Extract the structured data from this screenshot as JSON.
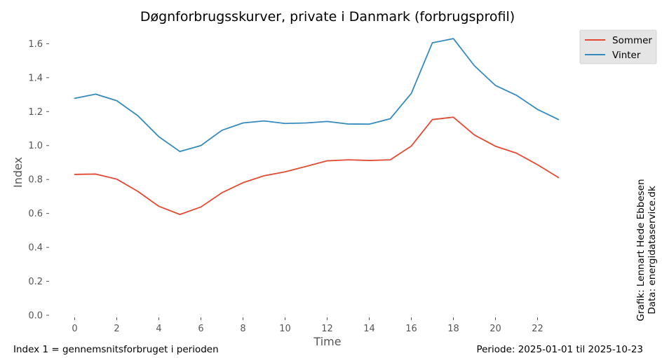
{
  "chart_data": {
    "type": "line",
    "title": "Døgnforbrugsskurver, private i Danmark (forbrugsprofil)",
    "xlabel": "Time",
    "ylabel": "Index",
    "x": [
      0,
      1,
      2,
      3,
      4,
      5,
      6,
      7,
      8,
      9,
      10,
      11,
      12,
      13,
      14,
      15,
      16,
      17,
      18,
      19,
      20,
      21,
      22,
      23
    ],
    "xticks": [
      0,
      2,
      4,
      6,
      8,
      10,
      12,
      14,
      16,
      18,
      20,
      22
    ],
    "xlim": [
      -1.05,
      24.05
    ],
    "ylim": [
      0,
      1.68
    ],
    "yticks": [
      0.0,
      0.2,
      0.4,
      0.6,
      0.8,
      1.0,
      1.2,
      1.4,
      1.6
    ],
    "grid": false,
    "legend_position": "top-right",
    "series": [
      {
        "name": "Sommer",
        "color": "#e24a33",
        "values": [
          0.83,
          0.832,
          0.802,
          0.73,
          0.642,
          0.594,
          0.638,
          0.722,
          0.781,
          0.822,
          0.845,
          0.877,
          0.91,
          0.916,
          0.912,
          0.916,
          0.997,
          1.153,
          1.167,
          1.062,
          0.996,
          0.955,
          0.887,
          0.811
        ]
      },
      {
        "name": "Vinter",
        "color": "#348abd",
        "values": [
          1.278,
          1.303,
          1.264,
          1.176,
          1.052,
          0.965,
          1.0,
          1.09,
          1.133,
          1.145,
          1.13,
          1.133,
          1.142,
          1.127,
          1.126,
          1.158,
          1.307,
          1.605,
          1.63,
          1.47,
          1.354,
          1.296,
          1.213,
          1.153
        ]
      }
    ],
    "footer_left": "Index 1 = gennemsnitsforbruget i perioden",
    "footer_right": "Periode: 2025-01-01 til 2025-10-23",
    "credit_lines": [
      "Grafik: Lennart Hede Ebbesen",
      "Data: energidataservice.dk"
    ]
  }
}
